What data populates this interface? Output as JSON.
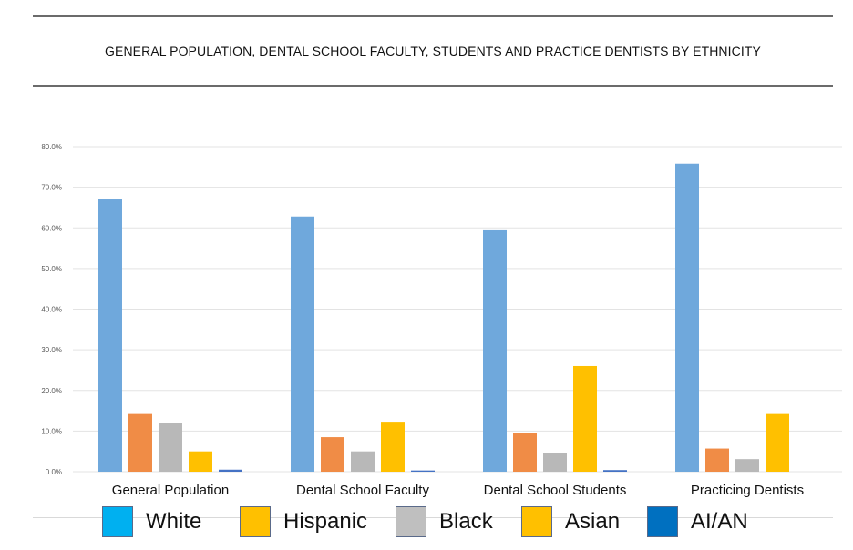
{
  "chart_data": {
    "type": "bar",
    "title": "GENERAL POPULATION, DENTAL SCHOOL FACULTY, STUDENTS AND PRACTICE DENTISTS BY ETHNICITY",
    "categories": [
      "General Population",
      "Dental School Faculty",
      "Dental School Students",
      "Practicing Dentists"
    ],
    "series": [
      {
        "name": "White",
        "color": "#6fa8dc",
        "values": [
          67.0,
          62.8,
          59.4,
          75.8
        ]
      },
      {
        "name": "Hispanic",
        "color": "#f08c46",
        "values": [
          14.2,
          8.5,
          9.5,
          5.7
        ]
      },
      {
        "name": "Black",
        "color": "#b8b8b8",
        "values": [
          11.9,
          5.0,
          4.7,
          3.1
        ]
      },
      {
        "name": "Asian",
        "color": "#ffc000",
        "values": [
          5.0,
          12.3,
          26.0,
          14.2
        ]
      },
      {
        "name": "AI/AN",
        "color": "#4472c4",
        "values": [
          0.5,
          0.3,
          0.4,
          0.0
        ]
      }
    ],
    "ylim": [
      0,
      80
    ],
    "yticks": [
      "0.0%",
      "10.0%",
      "20.0%",
      "30.0%",
      "40.0%",
      "50.0%",
      "60.0%",
      "70.0%",
      "80.0%"
    ],
    "ytick_values": [
      0,
      10,
      20,
      30,
      40,
      50,
      60,
      70,
      80
    ],
    "grid": true,
    "legend_position": "bottom",
    "legend": [
      {
        "label": "White",
        "color": "#00b0f0"
      },
      {
        "label": "Hispanic",
        "color": "#ffc000"
      },
      {
        "label": "Black",
        "color": "#bfbfbf"
      },
      {
        "label": "Asian",
        "color": "#ffc000"
      },
      {
        "label": "AI/AN",
        "color": "#0070c0"
      }
    ]
  }
}
